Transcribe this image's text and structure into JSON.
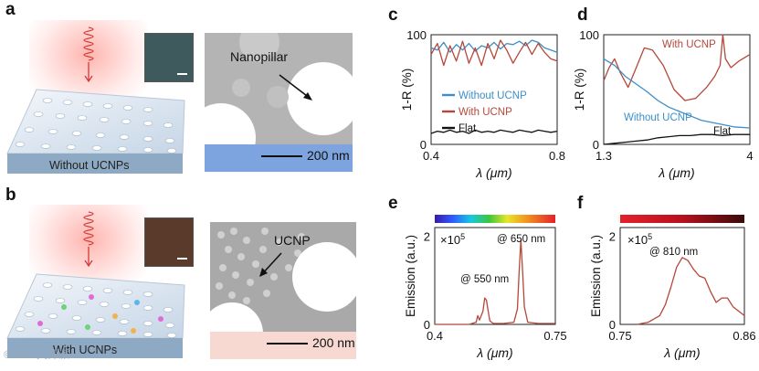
{
  "figure": {
    "panels": {
      "a": "a",
      "b": "b",
      "c": "c",
      "d": "d",
      "e": "e",
      "f": "f"
    },
    "a": {
      "platform_label": "Without UCNPs",
      "sem_callout": "Nanopillar",
      "scale_bar": "200 nm",
      "sem_bar_color": "#7da4de"
    },
    "b": {
      "platform_label": "With UCNPs",
      "sem_callout": "UCNP",
      "scale_bar": "200 nm",
      "sem_bar_color": "#f7d9d2"
    },
    "watermark": "© IOP 大师派"
  },
  "chart_data": [
    {
      "panel": "c",
      "type": "line",
      "xlabel": "λ (μm)",
      "ylabel": "1-R (%)",
      "xlim": [
        0.4,
        0.8
      ],
      "ylim": [
        0,
        100
      ],
      "xticks": [
        "0.4",
        "0.8"
      ],
      "yticks": [
        "0",
        "100"
      ],
      "legend": [
        "Without UCNP",
        "With UCNP",
        "Flat"
      ],
      "series": [
        {
          "name": "Without UCNP",
          "color": "#3c8fc9",
          "x": [
            0.4,
            0.42,
            0.44,
            0.46,
            0.48,
            0.5,
            0.52,
            0.54,
            0.56,
            0.58,
            0.6,
            0.62,
            0.64,
            0.66,
            0.68,
            0.7,
            0.72,
            0.74,
            0.76,
            0.78,
            0.8
          ],
          "y": [
            88,
            86,
            93,
            84,
            91,
            86,
            92,
            85,
            90,
            88,
            93,
            87,
            92,
            91,
            94,
            90,
            95,
            93,
            88,
            86,
            84
          ]
        },
        {
          "name": "With UCNP",
          "color": "#b5473a",
          "x": [
            0.4,
            0.42,
            0.44,
            0.46,
            0.48,
            0.5,
            0.52,
            0.54,
            0.56,
            0.58,
            0.6,
            0.62,
            0.64,
            0.66,
            0.68,
            0.7,
            0.72,
            0.74,
            0.76,
            0.78,
            0.8
          ],
          "y": [
            82,
            92,
            72,
            90,
            76,
            94,
            74,
            88,
            72,
            92,
            78,
            95,
            86,
            74,
            84,
            93,
            82,
            92,
            84,
            78,
            76
          ]
        },
        {
          "name": "Flat",
          "color": "#111111",
          "x": [
            0.4,
            0.42,
            0.44,
            0.46,
            0.48,
            0.5,
            0.52,
            0.54,
            0.56,
            0.58,
            0.6,
            0.62,
            0.64,
            0.66,
            0.68,
            0.7,
            0.72,
            0.74,
            0.76,
            0.78,
            0.8
          ],
          "y": [
            10,
            12,
            11,
            13,
            11,
            12,
            10,
            13,
            11,
            12,
            11,
            13,
            12,
            11,
            13,
            12,
            11,
            13,
            12,
            11,
            12
          ]
        }
      ]
    },
    {
      "panel": "d",
      "type": "line",
      "xlabel": "λ (μm)",
      "ylabel": "1-R (%)",
      "xlim": [
        1.3,
        4
      ],
      "ylim": [
        0,
        100
      ],
      "xticks": [
        "1.3",
        "4"
      ],
      "yticks": [
        "0",
        "100"
      ],
      "annotations": [
        "With UCNP",
        "Without UCNP",
        "Flat"
      ],
      "series": [
        {
          "name": "With UCNP",
          "color": "#b5473a",
          "x": [
            1.3,
            1.4,
            1.5,
            1.6,
            1.75,
            1.9,
            2.05,
            2.2,
            2.4,
            2.6,
            2.8,
            3.0,
            3.2,
            3.35,
            3.45,
            3.5,
            3.55,
            3.65,
            3.8,
            4.0
          ],
          "y": [
            58,
            70,
            78,
            66,
            52,
            70,
            88,
            86,
            72,
            50,
            40,
            42,
            52,
            62,
            72,
            100,
            78,
            70,
            76,
            82
          ]
        },
        {
          "name": "Without UCNP",
          "color": "#3c8fc9",
          "x": [
            1.3,
            1.5,
            1.7,
            1.9,
            2.1,
            2.3,
            2.5,
            2.7,
            2.9,
            3.1,
            3.3,
            3.5,
            3.7,
            4.0
          ],
          "y": [
            78,
            72,
            62,
            55,
            48,
            40,
            34,
            30,
            26,
            22,
            20,
            18,
            16,
            15
          ]
        },
        {
          "name": "Flat",
          "color": "#111111",
          "x": [
            1.3,
            1.5,
            1.7,
            1.9,
            2.1,
            2.3,
            2.5,
            2.7,
            2.9,
            3.1,
            3.3,
            3.5,
            3.7,
            4.0
          ],
          "y": [
            0,
            1,
            2,
            3,
            4,
            6,
            7,
            8,
            8,
            9,
            9,
            8,
            9,
            9
          ]
        }
      ]
    },
    {
      "panel": "e",
      "type": "line",
      "xlabel": "λ (μm)",
      "ylabel": "Emission (a.u.)",
      "xlim": [
        0.4,
        0.75
      ],
      "ylim": [
        0,
        2.2
      ],
      "xticks": [
        "0.4",
        "0.75"
      ],
      "yticks": [
        "0",
        "2"
      ],
      "multiplier": "×10^5",
      "colorbar": "visible spectrum",
      "annotations": [
        "@ 650 nm",
        "@ 550 nm"
      ],
      "series": [
        {
          "name": "Emission",
          "color": "#b5473a",
          "x": [
            0.4,
            0.5,
            0.52,
            0.525,
            0.53,
            0.54,
            0.545,
            0.55,
            0.555,
            0.56,
            0.57,
            0.6,
            0.63,
            0.64,
            0.645,
            0.65,
            0.655,
            0.66,
            0.67,
            0.7,
            0.75
          ],
          "y": [
            0,
            0,
            0.05,
            0.2,
            0.1,
            0.3,
            0.6,
            0.55,
            0.3,
            0.08,
            0.02,
            0.02,
            0.05,
            0.35,
            1.2,
            1.92,
            1.2,
            0.4,
            0.05,
            0.02,
            0.02
          ]
        }
      ]
    },
    {
      "panel": "f",
      "type": "line",
      "xlabel": "λ (μm)",
      "ylabel": "Emission (a.u.)",
      "xlim": [
        0.75,
        0.86
      ],
      "ylim": [
        0,
        2.2
      ],
      "xticks": [
        "0.75",
        "0.86"
      ],
      "yticks": [
        "0",
        "2"
      ],
      "multiplier": "×10^5",
      "colorbar": "near-infrared",
      "annotations": [
        "@ 810 nm"
      ],
      "series": [
        {
          "name": "Emission",
          "color": "#b5473a",
          "x": [
            0.765,
            0.775,
            0.785,
            0.79,
            0.795,
            0.8,
            0.805,
            0.81,
            0.815,
            0.82,
            0.825,
            0.83,
            0.835,
            0.84,
            0.845,
            0.85,
            0.86
          ],
          "y": [
            0,
            0.05,
            0.2,
            0.45,
            0.85,
            1.3,
            1.52,
            1.45,
            1.25,
            1.1,
            1.05,
            0.75,
            0.5,
            0.6,
            0.6,
            0.4,
            0.2
          ]
        }
      ]
    }
  ]
}
